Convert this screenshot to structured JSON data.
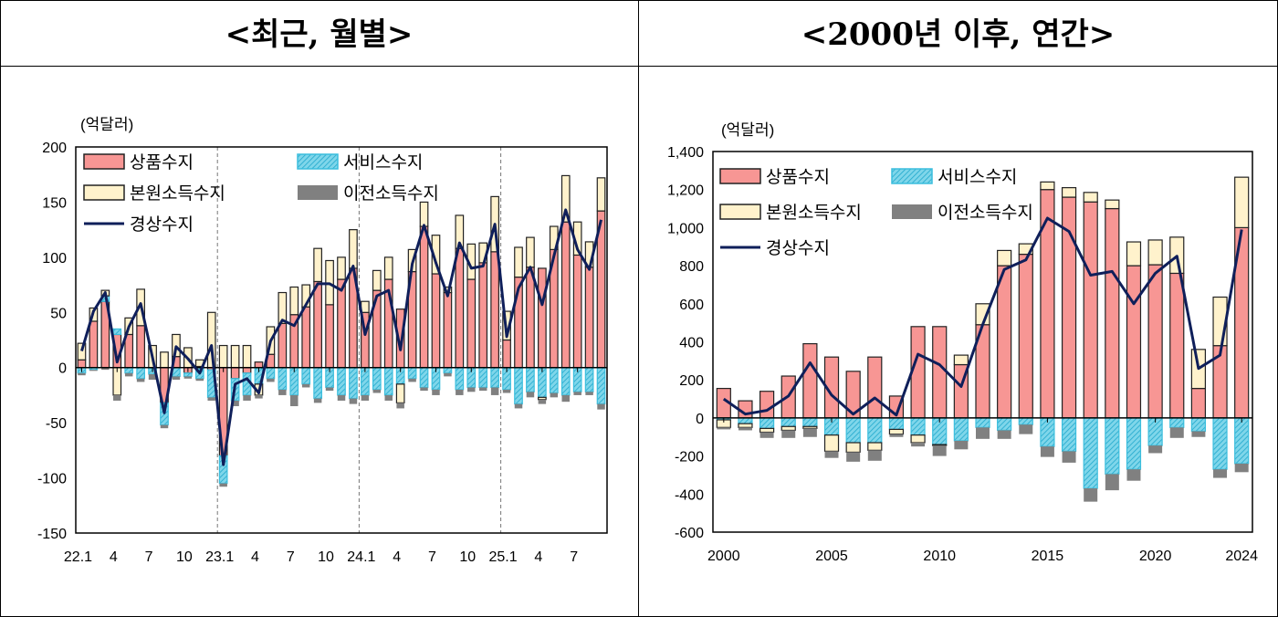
{
  "titles": {
    "left": "<최근, 월별>",
    "right": "<2000년 이후, 연간>"
  },
  "colors": {
    "goods": "#F79694",
    "services": "#4DC3DE",
    "primary": "#FFF2CC",
    "secondary": "#808080",
    "current": "#0F1F5A"
  },
  "chart_data": [
    {
      "type": "bar",
      "stacked": true,
      "unit_label": "(억달러)",
      "ylim": [
        -150,
        200
      ],
      "yticks": [
        "-150",
        "-100",
        "-50",
        "0",
        "50",
        "100",
        "150",
        "200"
      ],
      "x_tick_labels": [
        "22.1",
        "4",
        "7",
        "10",
        "23.1",
        "4",
        "7",
        "10",
        "24.1",
        "4",
        "7",
        "10",
        "25.1",
        "4",
        "7"
      ],
      "year_separators": [
        "23.1",
        "24.1",
        "25.1"
      ],
      "categories": [
        "22.1",
        "22.2",
        "22.3",
        "22.4",
        "22.5",
        "22.6",
        "22.7",
        "22.8",
        "22.9",
        "22.10",
        "22.11",
        "22.12",
        "23.1",
        "23.2",
        "23.3",
        "23.4",
        "23.5",
        "23.6",
        "23.7",
        "23.8",
        "23.9",
        "23.10",
        "23.11",
        "23.12",
        "24.1",
        "24.2",
        "24.3",
        "24.4",
        "24.5",
        "24.6",
        "24.7",
        "24.8",
        "24.9",
        "24.10",
        "24.11",
        "24.12",
        "25.1",
        "25.2",
        "25.3",
        "25.4",
        "25.5",
        "25.6",
        "25.7",
        "25.8",
        "25.9"
      ],
      "series": [
        {
          "name": "상품수지",
          "kind": "bar",
          "color_key": "goods",
          "values": [
            7,
            42,
            60,
            30,
            30,
            38,
            -1,
            -32,
            10,
            -5,
            1,
            -2,
            -80,
            -10,
            -5,
            5,
            12,
            40,
            48,
            55,
            78,
            57,
            80,
            90,
            50,
            70,
            80,
            53,
            87,
            128,
            85,
            68,
            108,
            80,
            95,
            105,
            25,
            82,
            91,
            90,
            107,
            132,
            102,
            91,
            142
          ]
        },
        {
          "name": "서비스수지",
          "kind": "bar",
          "color_key": "services",
          "values": [
            -5,
            -2,
            5,
            5,
            -5,
            -10,
            -5,
            -20,
            -8,
            -3,
            -10,
            -25,
            -25,
            -20,
            -20,
            -15,
            -10,
            -20,
            -25,
            -15,
            -28,
            -18,
            -25,
            -28,
            -25,
            -20,
            -25,
            -15,
            -10,
            -18,
            -20,
            -5,
            -20,
            -18,
            -18,
            -18,
            -20,
            -33,
            -22,
            -27,
            -23,
            -25,
            -22,
            -22,
            -33
          ]
        },
        {
          "name": "본원소득수지",
          "kind": "bar",
          "color_key": "primary",
          "values": [
            15,
            12,
            5,
            -25,
            15,
            33,
            20,
            14,
            20,
            18,
            6,
            50,
            20,
            20,
            20,
            -10,
            25,
            28,
            25,
            20,
            30,
            40,
            20,
            35,
            10,
            18,
            20,
            -17,
            20,
            22,
            35,
            5,
            30,
            32,
            18,
            50,
            26,
            27,
            27,
            -2,
            21,
            42,
            30,
            23,
            30
          ]
        },
        {
          "name": "이전소득수지",
          "kind": "bar",
          "color_key": "secondary",
          "values": [
            -2,
            -1,
            -2,
            -5,
            -3,
            -3,
            -5,
            -3,
            -3,
            -2,
            -2,
            -3,
            -3,
            -5,
            -5,
            -3,
            -3,
            -5,
            -10,
            -3,
            -4,
            -3,
            -5,
            -5,
            -5,
            -3,
            -5,
            -5,
            -3,
            -3,
            -5,
            -3,
            -5,
            -4,
            -3,
            -7,
            -3,
            -4,
            -5,
            -4,
            -4,
            -6,
            -3,
            -3,
            -5
          ]
        },
        {
          "name": "경상수지",
          "kind": "line",
          "color_key": "current",
          "values": [
            15,
            51,
            68,
            5,
            37,
            58,
            9,
            -41,
            19,
            8,
            -5,
            20,
            -88,
            -15,
            -10,
            -23,
            24,
            43,
            38,
            57,
            76,
            76,
            70,
            92,
            30,
            65,
            70,
            16,
            94,
            129,
            95,
            65,
            113,
            90,
            92,
            130,
            28,
            72,
            91,
            57,
            101,
            143,
            107,
            89,
            134
          ]
        }
      ]
    },
    {
      "type": "bar",
      "stacked": true,
      "unit_label": "(억달러)",
      "ylim": [
        -600,
        1400
      ],
      "yticks": [
        "-600",
        "-400",
        "-200",
        "0",
        "200",
        "400",
        "600",
        "800",
        "1,000",
        "1,200",
        "1,400"
      ],
      "x_tick_labels": [
        "2000",
        "2005",
        "2010",
        "2015",
        "2020",
        "2024"
      ],
      "categories": [
        "2000",
        "2001",
        "2002",
        "2003",
        "2004",
        "2005",
        "2006",
        "2007",
        "2008",
        "2009",
        "2010",
        "2011",
        "2012",
        "2013",
        "2014",
        "2015",
        "2016",
        "2017",
        "2018",
        "2019",
        "2020",
        "2021",
        "2022",
        "2023",
        "2024"
      ],
      "series": [
        {
          "name": "상품수지",
          "kind": "bar",
          "color_key": "goods",
          "values": [
            155,
            90,
            140,
            220,
            390,
            320,
            245,
            320,
            115,
            480,
            480,
            280,
            490,
            800,
            860,
            1200,
            1160,
            1135,
            1100,
            800,
            805,
            760,
            155,
            380,
            1000
          ]
        },
        {
          "name": "서비스수지",
          "kind": "bar",
          "color_key": "services",
          "values": [
            -10,
            -30,
            -55,
            -45,
            -45,
            -90,
            -130,
            -130,
            -60,
            -90,
            -140,
            -120,
            -50,
            -65,
            -35,
            -150,
            -175,
            -370,
            -295,
            -270,
            -145,
            -50,
            -70,
            -270,
            -240
          ]
        },
        {
          "name": "본원소득수지",
          "kind": "bar",
          "color_key": "primary",
          "values": [
            -40,
            -20,
            -20,
            -20,
            -10,
            -85,
            -50,
            -40,
            -25,
            -40,
            -5,
            50,
            110,
            80,
            55,
            40,
            50,
            50,
            45,
            125,
            130,
            190,
            205,
            255,
            265
          ]
        },
        {
          "name": "이전소득수지",
          "kind": "bar",
          "color_key": "secondary",
          "values": [
            -10,
            -15,
            -30,
            -40,
            -45,
            -35,
            -50,
            -55,
            -15,
            -20,
            -55,
            -45,
            -60,
            -45,
            -50,
            -55,
            -60,
            -70,
            -85,
            -60,
            -40,
            -55,
            -30,
            -45,
            -45
          ]
        },
        {
          "name": "경상수지",
          "kind": "line",
          "color_key": "current",
          "values": [
            100,
            20,
            40,
            115,
            290,
            120,
            20,
            105,
            15,
            335,
            280,
            165,
            490,
            780,
            830,
            1050,
            980,
            750,
            770,
            600,
            760,
            850,
            260,
            330,
            990
          ]
        }
      ]
    }
  ]
}
